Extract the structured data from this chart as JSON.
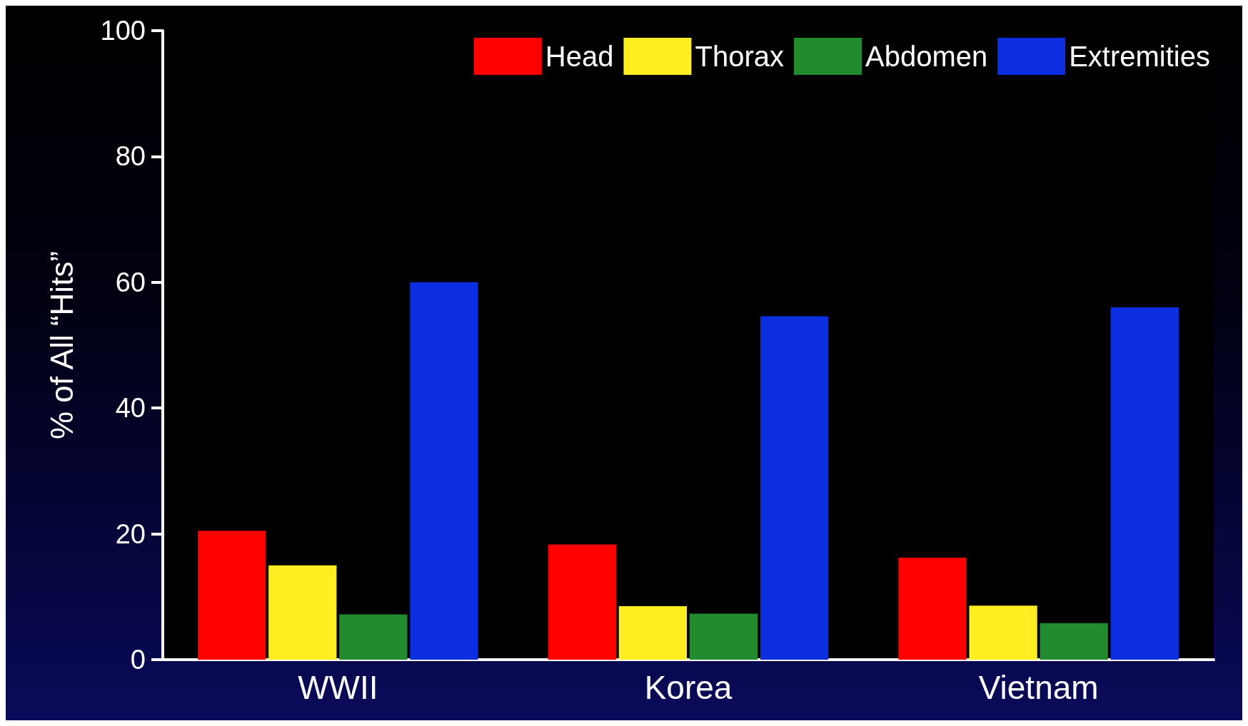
{
  "chart_data": {
    "type": "bar",
    "ylabel": "% of All “Hits”",
    "categories": [
      "WWII",
      "Korea",
      "Vietnam"
    ],
    "series": [
      {
        "name": "Head",
        "color": "#ff0000",
        "values": [
          20.5,
          18.3,
          16.2
        ]
      },
      {
        "name": "Thorax",
        "color": "#ffee22",
        "values": [
          15,
          8.5,
          8.6
        ]
      },
      {
        "name": "Abdomen",
        "color": "#228b2e",
        "values": [
          7.2,
          7.3,
          5.8
        ]
      },
      {
        "name": "Extremities",
        "color": "#0b2ee0",
        "values": [
          60,
          54.6,
          56
        ]
      }
    ],
    "ylim": [
      0,
      100
    ],
    "yticks": [
      0,
      20,
      40,
      60,
      80,
      100
    ],
    "grid": false,
    "legend": "top right"
  }
}
